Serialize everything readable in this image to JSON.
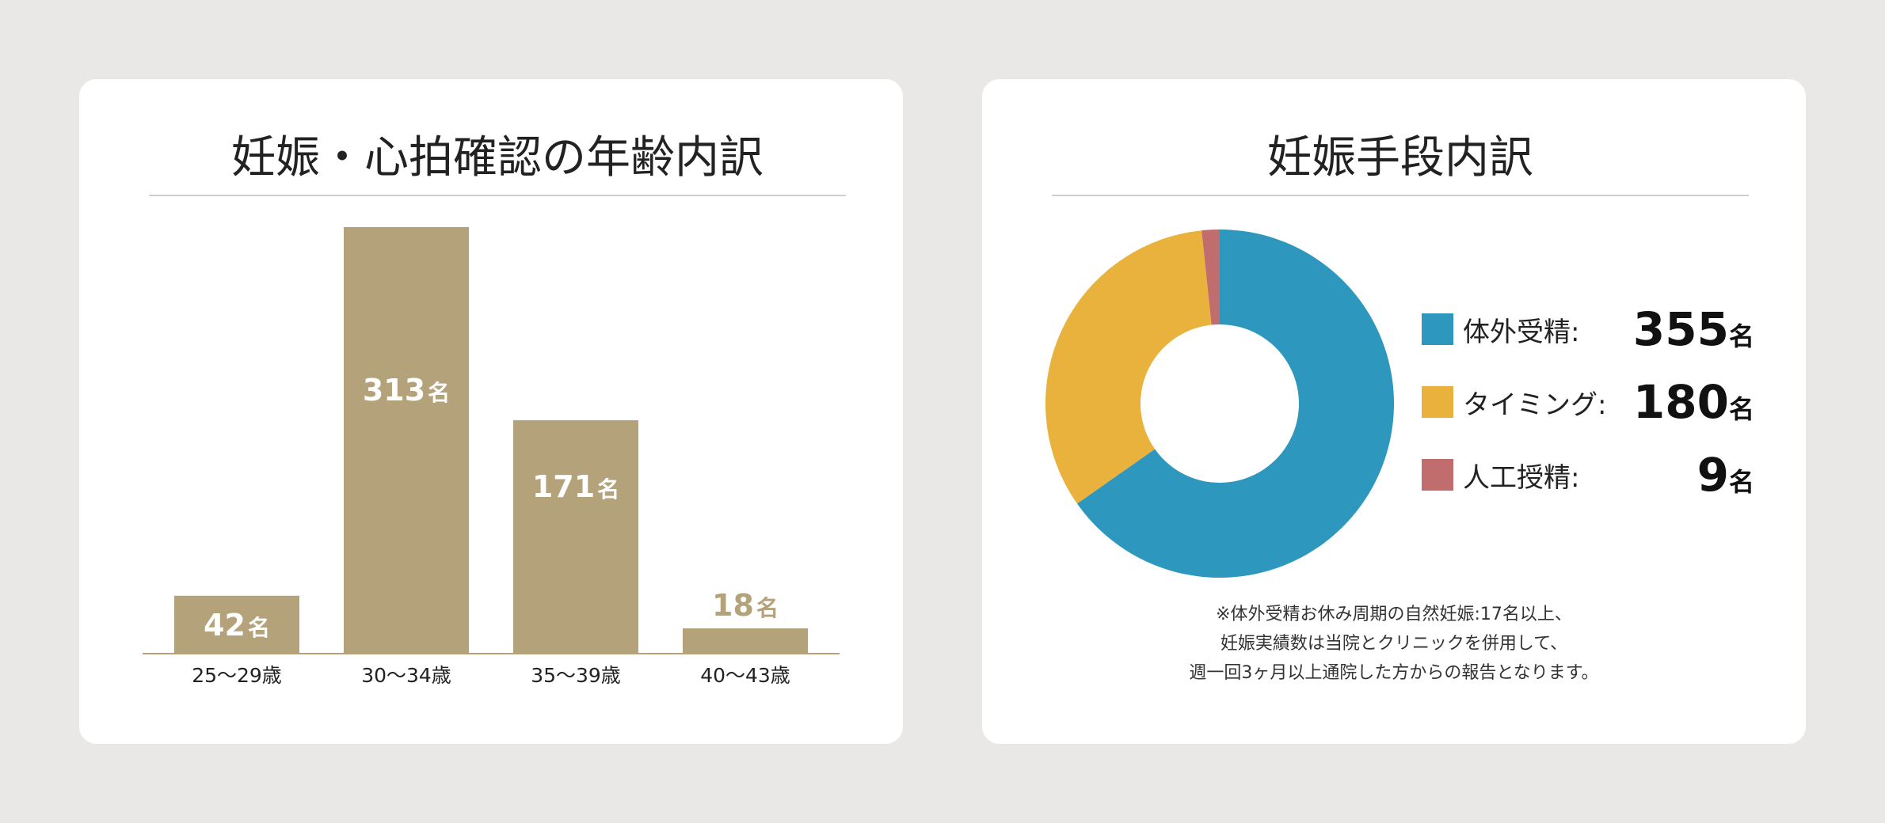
{
  "colors": {
    "bar": "#b4a27b",
    "bar_text": "#ffffff",
    "bar_text_outside": "#b4a27b",
    "ivf": "#2d97bd",
    "timing": "#e9b23d",
    "ai": "#c26d6d"
  },
  "chart_data": [
    {
      "type": "bar",
      "title": "妊娠・心拍確認の年齢内訳",
      "categories": [
        "25〜29歳",
        "30〜34歳",
        "35〜39歳",
        "40〜43歳"
      ],
      "values": [
        42,
        313,
        171,
        18
      ],
      "unit": "名",
      "ylim": [
        0,
        313
      ],
      "grid": false
    },
    {
      "type": "pie",
      "title": "妊娠手段内訳",
      "donut": true,
      "slices": [
        {
          "label": "体外受精",
          "value": 355,
          "color": "#2d97bd"
        },
        {
          "label": "タイミング",
          "value": 180,
          "color": "#e9b23d"
        },
        {
          "label": "人工授精",
          "value": 9,
          "color": "#c26d6d"
        }
      ],
      "unit": "名",
      "legend_position": "right"
    }
  ],
  "legend_separator": ":",
  "note_lines": [
    "※体外受精お休み周期の自然妊娠:17名以上、",
    "妊娠実績数は当院とクリニックを併用して、",
    "週一回3ヶ月以上通院した方からの報告となります。"
  ]
}
